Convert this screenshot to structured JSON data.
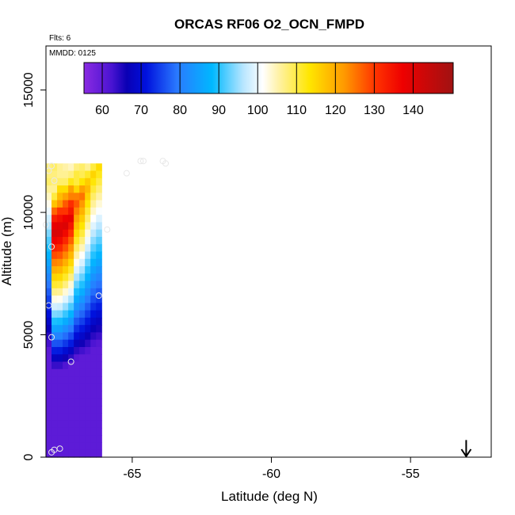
{
  "chart_data": {
    "type": "heatmap",
    "title": "ORCAS RF06 O2_OCN_FMPD",
    "flights_note": "Flts: 6",
    "date_note": "MMDD: 0125",
    "xlabel": "Latitude (deg N)",
    "ylabel": "Altitude (m)",
    "xlim": [
      -68.1,
      -52.1
    ],
    "ylim": [
      0,
      16800
    ],
    "xticks": [
      -65,
      -60,
      -55
    ],
    "xtick_labels": [
      "-65",
      "-60",
      "-55"
    ],
    "yticks": [
      0,
      5000,
      10000,
      15000
    ],
    "ytick_labels": [
      "0",
      "5000",
      "10000",
      "15000"
    ],
    "colorbar": {
      "min": 55,
      "max": 150,
      "ticks": [
        60,
        70,
        80,
        90,
        100,
        110,
        120,
        130,
        140
      ],
      "tick_labels": [
        "60",
        "70",
        "80",
        "90",
        "100",
        "110",
        "120",
        "130",
        "140"
      ],
      "placement": "top-inside",
      "stops": [
        {
          "v": 55,
          "c": "#8a2be2"
        },
        {
          "v": 62,
          "c": "#4b14d2"
        },
        {
          "v": 66,
          "c": "#0a00b4"
        },
        {
          "v": 71,
          "c": "#0011dd"
        },
        {
          "v": 79,
          "c": "#2a7aff"
        },
        {
          "v": 88,
          "c": "#00b8ff"
        },
        {
          "v": 96,
          "c": "#b8e6ff"
        },
        {
          "v": 101,
          "c": "#ffffff"
        },
        {
          "v": 105,
          "c": "#fff2a8"
        },
        {
          "v": 113,
          "c": "#ffe600"
        },
        {
          "v": 122,
          "c": "#ff9900"
        },
        {
          "v": 130,
          "c": "#ff3300"
        },
        {
          "v": 137,
          "c": "#ee0000"
        },
        {
          "v": 150,
          "c": "#a01212"
        }
      ]
    },
    "grid": {
      "lat_start": -68.1,
      "lat_step": 0.2,
      "alt_step": 300,
      "columns": [
        {
          "top": 11700,
          "values": [
            107,
            107,
            108
          ]
        },
        {
          "top": 11700,
          "values": [
            108,
            107,
            107,
            106,
            110,
            117,
            126,
            133,
            138,
            141
          ]
        },
        {
          "top": 11700,
          "values": [
            106,
            106,
            108,
            114,
            118,
            122,
            130,
            135,
            139,
            140
          ]
        },
        {
          "top": 11700,
          "values": [
            105,
            106,
            108,
            114,
            121,
            127,
            130,
            137,
            140
          ]
        },
        {
          "top": 11700,
          "values": [
            104,
            107,
            112,
            121,
            124,
            131,
            134,
            138
          ]
        },
        {
          "top": 11700,
          "values": [
            107,
            110,
            110,
            115,
            124,
            127
          ]
        },
        {
          "top": 11700,
          "values": [
            108,
            109,
            113,
            121,
            125
          ]
        },
        {
          "top": 11700,
          "values": [
            106,
            111,
            116,
            118
          ]
        },
        {
          "top": 11700,
          "values": [
            110,
            115
          ]
        },
        {
          "top": 11700,
          "values": [
            114
          ]
        }
      ]
    },
    "points": [
      {
        "lat": -67.9,
        "alt": 11900
      },
      {
        "lat": -68.0,
        "alt": 11700
      },
      {
        "lat": -67.8,
        "alt": 11300
      },
      {
        "lat": -67.9,
        "alt": 8600
      },
      {
        "lat": -68.0,
        "alt": 6200
      },
      {
        "lat": -67.9,
        "alt": 4900
      },
      {
        "lat": -67.2,
        "alt": 3900
      },
      {
        "lat": -66.2,
        "alt": 6600
      },
      {
        "lat": -65.9,
        "alt": 9300
      },
      {
        "lat": -65.2,
        "alt": 11600
      },
      {
        "lat": -64.7,
        "alt": 12100
      },
      {
        "lat": -64.6,
        "alt": 12100
      },
      {
        "lat": -63.9,
        "alt": 12100
      },
      {
        "lat": -63.8,
        "alt": 12000
      },
      {
        "lat": -68.1,
        "alt": 9500
      },
      {
        "lat": -67.8,
        "alt": 300
      },
      {
        "lat": -67.6,
        "alt": 350
      },
      {
        "lat": -67.9,
        "alt": 200
      }
    ],
    "arrow": {
      "lat": -53.0,
      "alt_top": 700,
      "alt_bottom": 0
    }
  }
}
